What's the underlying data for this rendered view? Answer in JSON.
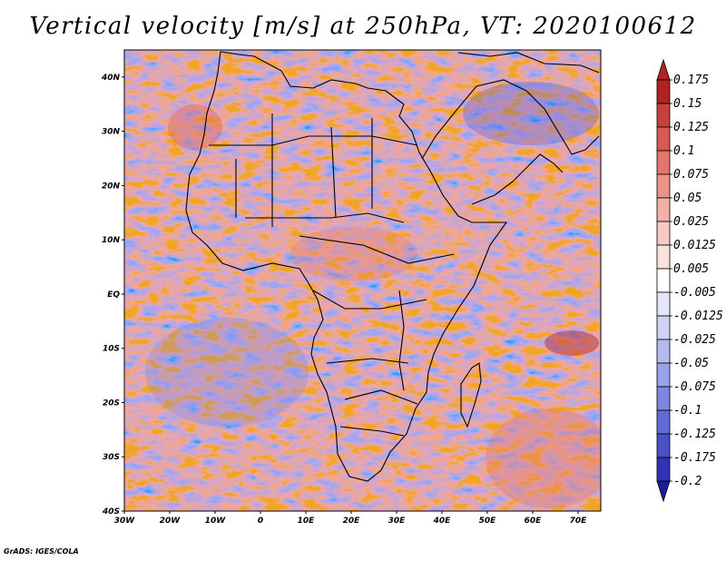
{
  "map": {
    "title": "Vertical velocity [m/s] at 250hPa, VT: 2020100612",
    "lat_labels": [
      "40N",
      "30N",
      "20N",
      "10N",
      "EQ",
      "10S",
      "20S",
      "30S",
      "40S"
    ],
    "lon_labels": [
      "30W",
      "20W",
      "10W",
      "0",
      "10E",
      "20E",
      "30E",
      "40E",
      "50E",
      "60E",
      "70E"
    ],
    "lat_range": [
      -40,
      45
    ],
    "lon_range": [
      -30,
      75
    ]
  },
  "colorbar": {
    "labels": [
      "0.175",
      "0.15",
      "0.125",
      "0.1",
      "0.075",
      "0.05",
      "0.025",
      "0.0125",
      "0.005",
      "-0.005",
      "-0.0125",
      "-0.025",
      "-0.05",
      "-0.075",
      "-0.1",
      "-0.125",
      "-0.175",
      "-0.2"
    ],
    "colors": [
      "#b22222",
      "#c8403a",
      "#d65a52",
      "#e2766c",
      "#ec9387",
      "#f3b0a5",
      "#f7cbc2",
      "#fae2dc",
      "#ffffff",
      "#e4e6f8",
      "#cfd2f5",
      "#b6bbef",
      "#9aa1e8",
      "#7f86df",
      "#636bd6",
      "#4a50c8",
      "#3034b4",
      "#1c1c9c"
    ]
  },
  "footer": "GrADS: IGES/COLA"
}
